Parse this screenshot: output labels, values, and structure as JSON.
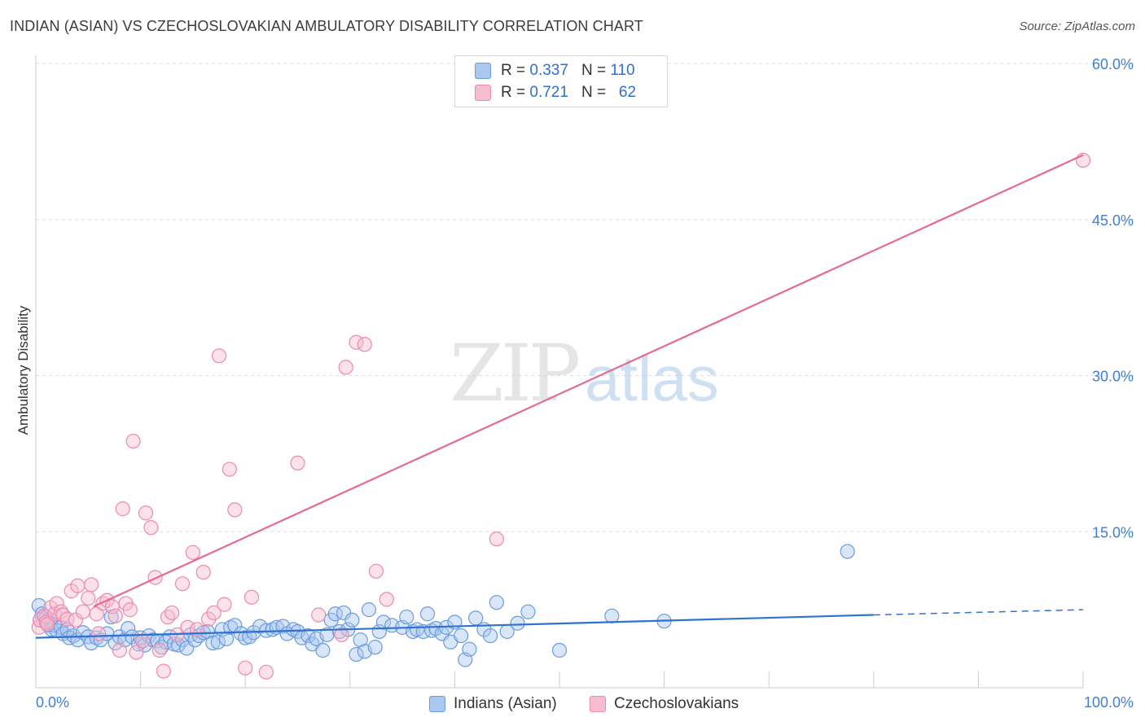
{
  "title": "INDIAN (ASIAN) VS CZECHOSLOVAKIAN AMBULATORY DISABILITY CORRELATION CHART",
  "source": "Source: ZipAtlas.com",
  "legend": {
    "r_label": "R =",
    "n_label": "N =",
    "series1": {
      "r": "0.337",
      "n": "110"
    },
    "series2": {
      "r": "0.721",
      "n": "62"
    }
  },
  "colors": {
    "blue_fill": "#a9c8f0",
    "blue_stroke": "#6b9be0",
    "blue_line": "#2f72d0",
    "pink_fill": "#f6bcd0",
    "pink_stroke": "#ec8aaa",
    "pink_line": "#e46a94",
    "axis_label": "#3f7fd6",
    "grid": "#dddddd"
  },
  "chart_data": {
    "type": "scatter",
    "title": "INDIAN (ASIAN) VS CZECHOSLOVAKIAN AMBULATORY DISABILITY CORRELATION CHART",
    "xlabel": "",
    "ylabel": "Ambulatory Disability",
    "xlim": [
      0,
      100
    ],
    "ylim": [
      0,
      63
    ],
    "x_ticks": [
      "0.0%",
      "100.0%"
    ],
    "y_ticks": [
      {
        "value": 15,
        "label": "15.0%"
      },
      {
        "value": 30,
        "label": "30.0%"
      },
      {
        "value": 45,
        "label": "45.0%"
      },
      {
        "value": 60,
        "label": "60.0%"
      }
    ],
    "watermark": {
      "zip": "ZIP",
      "atlas": "atlas"
    },
    "series": [
      {
        "name": "Indians (Asian)",
        "color": "blue",
        "trend": {
          "x0": 0,
          "y0": 4.8,
          "x1": 80,
          "y1": 7.0,
          "dash_to_x": 100,
          "dash_to_y": 7.5
        },
        "points": [
          [
            0.3,
            7.9
          ],
          [
            0.4,
            6.5
          ],
          [
            0.6,
            7.1
          ],
          [
            0.8,
            6.9
          ],
          [
            1.0,
            6.8
          ],
          [
            1.2,
            6.0
          ],
          [
            1.4,
            6.2
          ],
          [
            1.5,
            5.6
          ],
          [
            1.8,
            6.0
          ],
          [
            2.0,
            5.5
          ],
          [
            2.4,
            5.8
          ],
          [
            2.6,
            5.2
          ],
          [
            3.0,
            5.6
          ],
          [
            3.2,
            4.8
          ],
          [
            3.6,
            5.0
          ],
          [
            4.0,
            4.6
          ],
          [
            4.5,
            5.3
          ],
          [
            5.0,
            4.9
          ],
          [
            5.3,
            4.3
          ],
          [
            5.8,
            4.8
          ],
          [
            6.2,
            4.6
          ],
          [
            6.8,
            5.2
          ],
          [
            7.2,
            6.8
          ],
          [
            7.6,
            4.3
          ],
          [
            8.0,
            4.9
          ],
          [
            8.5,
            4.6
          ],
          [
            8.8,
            5.7
          ],
          [
            9.2,
            4.9
          ],
          [
            9.8,
            4.2
          ],
          [
            10.0,
            4.8
          ],
          [
            10.4,
            4.1
          ],
          [
            10.8,
            5.0
          ],
          [
            11.2,
            4.6
          ],
          [
            11.6,
            4.5
          ],
          [
            12.0,
            3.9
          ],
          [
            12.4,
            4.4
          ],
          [
            12.8,
            4.9
          ],
          [
            13.2,
            4.2
          ],
          [
            13.6,
            4.1
          ],
          [
            14.0,
            4.6
          ],
          [
            14.4,
            3.8
          ],
          [
            14.8,
            5.1
          ],
          [
            15.2,
            4.6
          ],
          [
            15.6,
            5.0
          ],
          [
            16.0,
            5.3
          ],
          [
            16.4,
            5.4
          ],
          [
            16.9,
            4.3
          ],
          [
            17.4,
            4.4
          ],
          [
            17.8,
            5.6
          ],
          [
            18.2,
            4.7
          ],
          [
            18.6,
            5.8
          ],
          [
            19.0,
            6.0
          ],
          [
            19.6,
            5.2
          ],
          [
            20.0,
            4.8
          ],
          [
            20.4,
            4.9
          ],
          [
            20.8,
            5.3
          ],
          [
            21.4,
            5.9
          ],
          [
            22.0,
            5.5
          ],
          [
            22.6,
            5.6
          ],
          [
            23.0,
            5.8
          ],
          [
            23.6,
            5.9
          ],
          [
            24.0,
            5.2
          ],
          [
            24.6,
            5.6
          ],
          [
            25.0,
            5.4
          ],
          [
            25.4,
            4.8
          ],
          [
            26.0,
            5.0
          ],
          [
            26.4,
            4.2
          ],
          [
            26.8,
            4.7
          ],
          [
            27.4,
            3.6
          ],
          [
            27.8,
            5.1
          ],
          [
            28.2,
            6.5
          ],
          [
            28.6,
            7.1
          ],
          [
            29.0,
            5.4
          ],
          [
            29.4,
            7.2
          ],
          [
            29.8,
            5.6
          ],
          [
            30.2,
            6.5
          ],
          [
            30.6,
            3.2
          ],
          [
            31.0,
            4.6
          ],
          [
            31.4,
            3.5
          ],
          [
            31.8,
            7.5
          ],
          [
            32.4,
            3.9
          ],
          [
            32.8,
            5.4
          ],
          [
            33.2,
            6.3
          ],
          [
            34.0,
            6.0
          ],
          [
            35.0,
            5.8
          ],
          [
            35.4,
            6.8
          ],
          [
            36.0,
            5.4
          ],
          [
            36.4,
            5.6
          ],
          [
            37.0,
            5.4
          ],
          [
            37.4,
            7.1
          ],
          [
            37.8,
            5.5
          ],
          [
            38.2,
            5.7
          ],
          [
            38.8,
            5.2
          ],
          [
            39.2,
            5.8
          ],
          [
            39.6,
            4.4
          ],
          [
            40.0,
            6.3
          ],
          [
            40.6,
            5.0
          ],
          [
            41.0,
            2.7
          ],
          [
            41.4,
            3.7
          ],
          [
            42.0,
            6.7
          ],
          [
            42.8,
            5.6
          ],
          [
            43.4,
            5.0
          ],
          [
            44.0,
            8.2
          ],
          [
            45.0,
            5.4
          ],
          [
            46.0,
            6.2
          ],
          [
            47.0,
            7.3
          ],
          [
            50.0,
            3.6
          ],
          [
            55.0,
            6.9
          ],
          [
            60.0,
            6.4
          ],
          [
            77.5,
            13.1
          ]
        ]
      },
      {
        "name": "Czechoslovakians",
        "color": "pink",
        "trend": {
          "x0": 5.5,
          "y0": 7.8,
          "x1": 100,
          "y1": 51.2
        },
        "points": [
          [
            0.3,
            5.8
          ],
          [
            0.4,
            6.5
          ],
          [
            0.8,
            6.9
          ],
          [
            1.0,
            6.3
          ],
          [
            1.1,
            6.1
          ],
          [
            1.4,
            7.7
          ],
          [
            1.8,
            7.1
          ],
          [
            2.0,
            8.1
          ],
          [
            2.4,
            7.3
          ],
          [
            2.6,
            7.0
          ],
          [
            3.0,
            6.6
          ],
          [
            3.4,
            9.3
          ],
          [
            3.8,
            6.5
          ],
          [
            4.0,
            9.8
          ],
          [
            4.5,
            7.3
          ],
          [
            5.0,
            8.6
          ],
          [
            5.3,
            9.9
          ],
          [
            5.8,
            7.1
          ],
          [
            6.0,
            5.2
          ],
          [
            6.4,
            8.1
          ],
          [
            6.8,
            8.4
          ],
          [
            7.3,
            7.8
          ],
          [
            7.6,
            6.9
          ],
          [
            8.0,
            3.6
          ],
          [
            8.3,
            17.2
          ],
          [
            8.6,
            8.1
          ],
          [
            9.0,
            7.5
          ],
          [
            9.3,
            23.7
          ],
          [
            9.6,
            3.4
          ],
          [
            10.2,
            4.5
          ],
          [
            10.5,
            16.8
          ],
          [
            11.0,
            15.4
          ],
          [
            11.4,
            10.6
          ],
          [
            11.8,
            3.6
          ],
          [
            12.2,
            1.6
          ],
          [
            12.6,
            6.8
          ],
          [
            13.0,
            7.2
          ],
          [
            13.5,
            5.1
          ],
          [
            14.0,
            10.0
          ],
          [
            14.5,
            5.8
          ],
          [
            15.0,
            13.0
          ],
          [
            15.4,
            5.6
          ],
          [
            16.0,
            11.1
          ],
          [
            16.5,
            6.6
          ],
          [
            17.0,
            7.2
          ],
          [
            17.5,
            31.9
          ],
          [
            18.0,
            8.0
          ],
          [
            18.5,
            21.0
          ],
          [
            19.0,
            17.1
          ],
          [
            20.0,
            1.9
          ],
          [
            20.6,
            8.7
          ],
          [
            22.0,
            1.5
          ],
          [
            25.0,
            21.6
          ],
          [
            27.0,
            7.0
          ],
          [
            29.2,
            5.1
          ],
          [
            29.6,
            30.8
          ],
          [
            30.6,
            33.2
          ],
          [
            31.4,
            33.0
          ],
          [
            32.5,
            11.2
          ],
          [
            33.5,
            8.5
          ],
          [
            44.0,
            14.3
          ],
          [
            100.0,
            50.7
          ]
        ]
      }
    ]
  }
}
